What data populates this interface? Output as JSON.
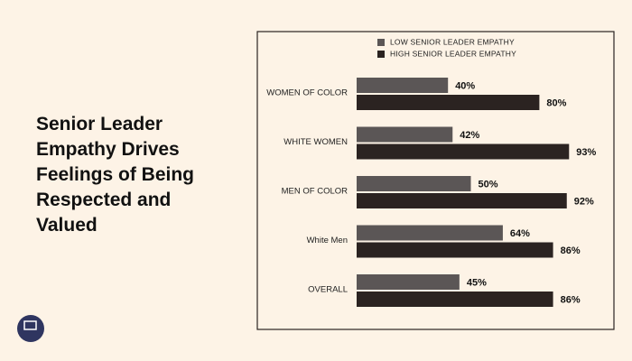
{
  "chart_data": {
    "type": "bar",
    "orientation": "horizontal",
    "title": "Senior Leader Empathy Drives Feelings of Being Respected and Valued",
    "categories": [
      "WOMEN OF COLOR",
      "WHITE WOMEN",
      "MEN OF COLOR",
      "White Men",
      "OVERALL"
    ],
    "series": [
      {
        "name": "LOW SENIOR LEADER EMPATHY",
        "color": "#5b5656",
        "values": [
          40,
          42,
          50,
          64,
          45
        ],
        "value_labels": [
          "40%",
          "42%",
          "50%",
          "64%",
          "45%"
        ]
      },
      {
        "name": "HIGH SENIOR LEADER EMPATHY",
        "color": "#2b2321",
        "values": [
          80,
          93,
          92,
          86,
          86
        ],
        "value_labels": [
          "80%",
          "93%",
          "92%",
          "86%",
          "86%"
        ]
      }
    ]
  }
}
